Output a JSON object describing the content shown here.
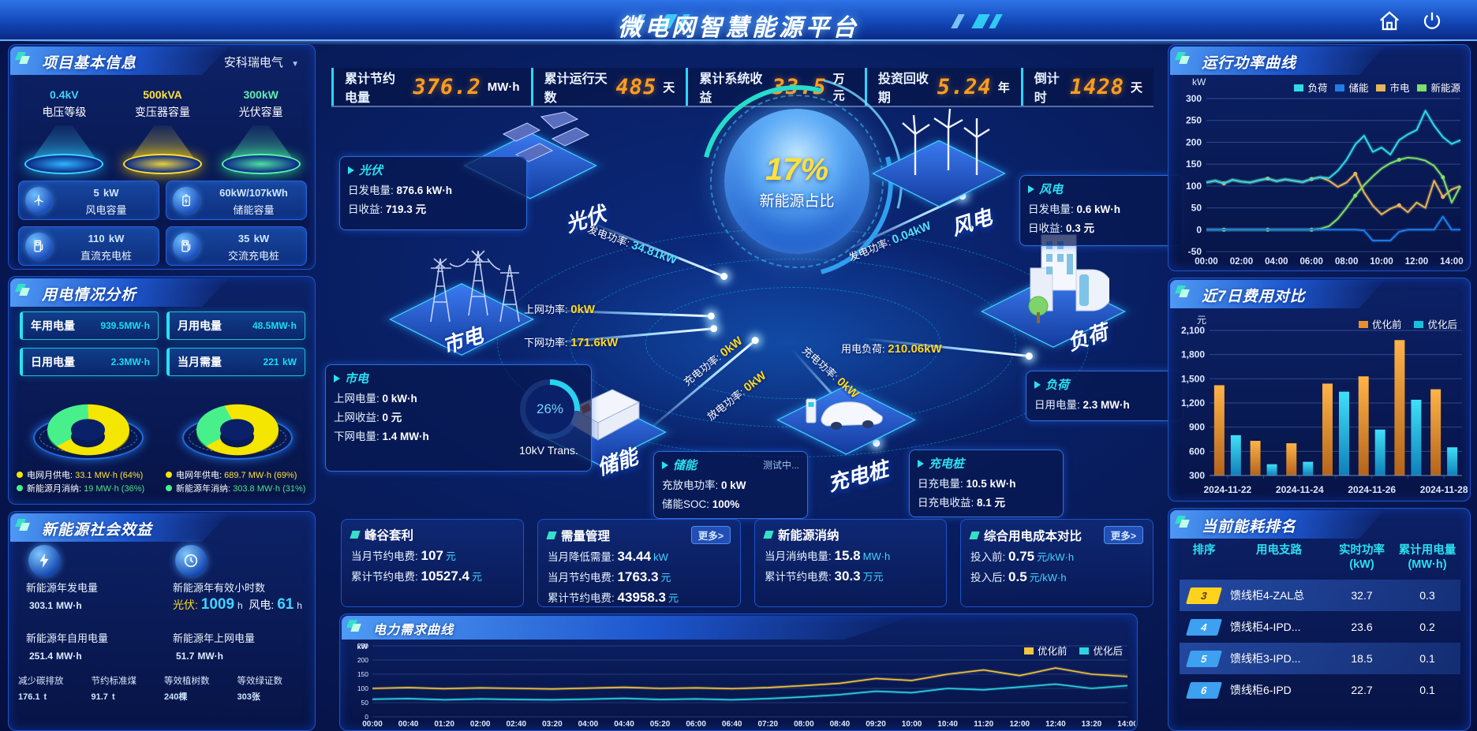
{
  "app": {
    "title": "微电网智慧能源平台"
  },
  "colors": {
    "accent_cyan": "#00d4ff",
    "accent_yellow": "#ffd81e",
    "accent_orange": "#ff9d20",
    "green": "#43e07e",
    "bg": "#0a1f63",
    "panel_border": "#1e53c8"
  },
  "top_stats": {
    "items": [
      {
        "label": "累计节约电量",
        "value": "376.2",
        "unit": "MW·h"
      },
      {
        "label": "累计运行天数",
        "value": "485",
        "unit": "天"
      },
      {
        "label": "累计系统收益",
        "value": "33.5",
        "unit": "万元"
      },
      {
        "label": "投资回收期",
        "value": "5.24",
        "unit": "年"
      },
      {
        "label": "倒计时",
        "value": "1428",
        "unit": "天"
      }
    ]
  },
  "left": {
    "project": {
      "title": "项目基本信息",
      "company": "安科瑞电气",
      "dropdown_arrow": "▼",
      "spotlights": [
        {
          "value": "0.4",
          "unit": "kV",
          "label": "电压等级",
          "color": "#3fd4ff"
        },
        {
          "value": "500",
          "unit": "kVA",
          "label": "变压器容量",
          "color": "#ffe13a"
        },
        {
          "value": "300",
          "unit": "kW",
          "label": "光伏容量",
          "color": "#5ff0b0"
        }
      ],
      "cards": [
        {
          "icon": "wind-turbine-icon",
          "value": "5",
          "unit": "kW",
          "label": "风电容量"
        },
        {
          "icon": "battery-icon",
          "value": "60kW/107kWh",
          "unit": "",
          "label": "储能容量"
        },
        {
          "icon": "dc-charger-icon",
          "value": "110",
          "unit": "kW",
          "label": "直流充电桩"
        },
        {
          "icon": "ac-charger-icon",
          "value": "35",
          "unit": "kW",
          "label": "交流充电桩"
        }
      ]
    },
    "usage": {
      "title": "用电情况分析",
      "stats": [
        {
          "label": "年用电量",
          "value": "939.5",
          "unit": "MW·h"
        },
        {
          "label": "月用电量",
          "value": "48.5",
          "unit": "MW·h"
        },
        {
          "label": "日用电量",
          "value": "2.3",
          "unit": "MW·h"
        },
        {
          "label": "当月需量",
          "value": "221",
          "unit": "kW"
        }
      ],
      "donuts": [
        {
          "legend": [
            {
              "label": "电网月供电:",
              "value": "33.1 MW·h (64%)",
              "pct": 64,
              "color": "#e3d400"
            },
            {
              "label": "新能源月消纳:",
              "value": "19 MW·h (36%)",
              "pct": 36,
              "color": "#35d97b"
            }
          ]
        },
        {
          "legend": [
            {
              "label": "电网年供电:",
              "value": "689.7 MW·h (69%)",
              "pct": 69,
              "color": "#e3d400"
            },
            {
              "label": "新能源年消纳:",
              "value": "303.8 MW·h (31%)",
              "pct": 31,
              "color": "#35d97b"
            }
          ]
        }
      ]
    },
    "benefit": {
      "title": "新能源社会效益",
      "gen": {
        "label": "新能源年发电量",
        "value": "303.1",
        "unit": "MW·h"
      },
      "hours": {
        "label": "新能源年有效小时数",
        "pv_label": "光伏:",
        "pv_value": "1009",
        "pv_unit": "h",
        "wind_label": "风电:",
        "wind_value": "61",
        "wind_unit": "h"
      },
      "self_use": {
        "label": "新能源年自用电量",
        "value": "251.4",
        "unit": "MW·h"
      },
      "to_grid": {
        "label": "新能源年上网电量",
        "value": "51.7",
        "unit": "MW·h"
      },
      "small": [
        {
          "label": "减少碳排放",
          "value": "176.1",
          "unit": "t"
        },
        {
          "label": "节约标准煤",
          "value": "91.7",
          "unit": "t"
        },
        {
          "label": "等效植树数",
          "value": "240",
          "unit": "棵"
        },
        {
          "label": "等效绿证数",
          "value": "303",
          "unit": "张"
        }
      ]
    }
  },
  "center": {
    "ratio": {
      "value": "17%",
      "label": "新能源占比"
    },
    "nodes": {
      "pv": "光伏",
      "wind": "风电",
      "grid": "市电",
      "storage": "储能",
      "charger": "充电桩",
      "load": "负荷"
    },
    "cards": {
      "pv": {
        "title": "光伏",
        "rows": [
          {
            "label": "日发电量:",
            "value": "876.6 kW·h"
          },
          {
            "label": "日收益:",
            "value": "719.3 元"
          }
        ]
      },
      "wind": {
        "title": "风电",
        "rows": [
          {
            "label": "日发电量:",
            "value": "0.6 kW·h"
          },
          {
            "label": "日收益:",
            "value": "0.3 元"
          }
        ]
      },
      "grid": {
        "title": "市电",
        "rows": [
          {
            "label": "上网电量:",
            "value": "0 kW·h"
          },
          {
            "label": "上网收益:",
            "value": "0 元"
          },
          {
            "label": "下网电量:",
            "value": "1.4 MW·h"
          }
        ],
        "gauge": {
          "value": "26%",
          "label": "10kV Trans."
        }
      },
      "storage": {
        "title": "储能",
        "badge": "测试中...",
        "rows": [
          {
            "label": "充放电功率:",
            "value": "0 kW"
          },
          {
            "label": "储能SOC:",
            "value": "100%"
          }
        ]
      },
      "charger": {
        "title": "充电桩",
        "rows": [
          {
            "label": "日充电量:",
            "value": "10.5 kW·h"
          },
          {
            "label": "日充电收益:",
            "value": "8.1 元"
          }
        ]
      },
      "load": {
        "title": "负荷",
        "rows": [
          {
            "label": "日用电量:",
            "value": "2.3 MW·h"
          }
        ]
      }
    },
    "flows": [
      {
        "label": "发电功率:",
        "value": "34.81kW",
        "tone": "cyan"
      },
      {
        "label": "上网功率:",
        "value": "0kW",
        "tone": "yellow"
      },
      {
        "label": "下网功率:",
        "value": "171.6kW",
        "tone": "yellow"
      },
      {
        "label": "发电功率:",
        "value": "0.04kW",
        "tone": "cyan"
      },
      {
        "label": "用电负荷:",
        "value": "210.06kW",
        "tone": "yellow"
      },
      {
        "label": "充电功率:",
        "value": "0kW",
        "tone": "yellow"
      },
      {
        "label": "放电功率:",
        "value": "0kW",
        "tone": "yellow"
      },
      {
        "label": "充电功率:",
        "value": "0kW",
        "tone": "yellow"
      }
    ],
    "summary": [
      {
        "title": "峰谷套利",
        "rows": [
          {
            "label": "当月节约电费:",
            "value": "107",
            "unit": "元"
          },
          {
            "label": "累计节约电费:",
            "value": "10527.4",
            "unit": "元"
          }
        ]
      },
      {
        "title": "需量管理",
        "more": "更多>",
        "rows": [
          {
            "label": "当月降低需量:",
            "value": "34.44",
            "unit": "kW"
          },
          {
            "label": "当月节约电费:",
            "value": "1763.3",
            "unit": "元"
          },
          {
            "label": "累计节约电费:",
            "value": "43958.3",
            "unit": "元"
          }
        ]
      },
      {
        "title": "新能源消纳",
        "rows": [
          {
            "label": "当月消纳电量:",
            "value": "15.8",
            "unit": "MW·h"
          },
          {
            "label": "累计节约电费:",
            "value": "30.3",
            "unit": "万元"
          }
        ]
      },
      {
        "title": "综合用电成本对比",
        "more": "更多>",
        "rows": [
          {
            "label": "投入前:",
            "value": "0.75",
            "unit": "元/kW·h"
          },
          {
            "label": "投入后:",
            "value": "0.5",
            "unit": "元/kW·h"
          }
        ]
      }
    ]
  },
  "right": {
    "power_curve": {
      "title": "运行功率曲线"
    },
    "cost_compare": {
      "title": "近7日费用对比"
    },
    "ranking": {
      "title": "当前能耗排名",
      "headers": {
        "col1": "排序",
        "col2": "用电支路",
        "col3a": "实时功率",
        "col3b": "(kW)",
        "col4a": "累计用电量",
        "col4b": "(MW·h)"
      },
      "rows": [
        {
          "rank": "3",
          "branch": "馈线柜4-ZAL总",
          "power": "32.7",
          "energy": "0.3"
        },
        {
          "rank": "4",
          "branch": "馈线柜4-IPD...",
          "power": "23.6",
          "energy": "0.2"
        },
        {
          "rank": "5",
          "branch": "馈线柜3-IPD...",
          "power": "18.5",
          "energy": "0.1"
        },
        {
          "rank": "6",
          "branch": "馈线柜6-IPD",
          "power": "22.7",
          "energy": "0.1"
        }
      ]
    }
  },
  "bottom_chart": {
    "title": "电力需求曲线"
  },
  "chart_data": [
    {
      "type": "line",
      "title": "运行功率曲线",
      "ylabel": "kW",
      "ylim": [
        -50,
        300
      ],
      "yticks": [
        -50,
        0,
        50,
        100,
        150,
        200,
        250,
        300
      ],
      "xticks_hours": [
        0,
        2,
        4,
        6,
        8,
        10,
        12,
        14
      ],
      "x_range_hours": [
        0,
        14.5
      ],
      "xtick_labels": [
        "00:00",
        "02:00",
        "04:00",
        "06:00",
        "08:00",
        "10:00",
        "12:00",
        "14:00"
      ],
      "legend_position": "top",
      "grid": true,
      "series": [
        {
          "name": "负荷",
          "color": "#2fd9e7",
          "values": [
            108,
            112,
            106,
            114,
            110,
            108,
            113,
            117,
            111,
            115,
            112,
            109,
            116,
            120,
            118,
            135,
            160,
            195,
            215,
            178,
            188,
            172,
            205,
            218,
            228,
            272,
            238,
            212,
            196,
            205
          ]
        },
        {
          "name": "储能",
          "color": "#1f7ce8",
          "values": [
            0,
            0,
            0,
            0,
            0,
            0,
            0,
            0,
            0,
            0,
            0,
            0,
            0,
            0,
            0,
            0,
            0,
            0,
            -2,
            -25,
            -25,
            -25,
            -5,
            0,
            0,
            0,
            0,
            30,
            0,
            0
          ]
        },
        {
          "name": "市电",
          "color": "#e8b457",
          "values": [
            108,
            112,
            106,
            114,
            110,
            108,
            113,
            117,
            111,
            115,
            112,
            109,
            116,
            120,
            112,
            98,
            108,
            128,
            85,
            55,
            35,
            48,
            56,
            40,
            62,
            50,
            112,
            75,
            92,
            100
          ]
        },
        {
          "name": "新能源",
          "color": "#7ede6a",
          "values": [
            0,
            0,
            0,
            0,
            0,
            0,
            0,
            0,
            0,
            0,
            0,
            0,
            0,
            2,
            8,
            25,
            50,
            78,
            102,
            122,
            140,
            152,
            160,
            165,
            163,
            158,
            146,
            120,
            62,
            100
          ]
        }
      ]
    },
    {
      "type": "bar",
      "title": "近7日费用对比",
      "ylabel": "元",
      "ylim": [
        300,
        2100
      ],
      "yticks": [
        300,
        600,
        900,
        1200,
        1500,
        1800,
        2100
      ],
      "categories": [
        "2024-11-22",
        "2024-11-23",
        "2024-11-24",
        "2024-11-25",
        "2024-11-26",
        "2024-11-27",
        "2024-11-28"
      ],
      "xtick_labels_shown": [
        "2024-11-22",
        "2024-11-24",
        "2024-11-26",
        "2024-11-28"
      ],
      "legend_position": "top-right",
      "grid": true,
      "series": [
        {
          "name": "优化前",
          "color": "#e88f2a",
          "values": [
            1420,
            730,
            700,
            1440,
            1530,
            1980,
            1370
          ]
        },
        {
          "name": "优化后",
          "color": "#18c0dd",
          "values": [
            800,
            440,
            470,
            1340,
            870,
            1240,
            650
          ]
        }
      ]
    },
    {
      "type": "line",
      "title": "电力需求曲线",
      "ylabel": "kW",
      "ylim": [
        0,
        250
      ],
      "yticks": [
        0,
        50,
        100,
        150,
        200,
        250
      ],
      "categories": [
        "00:00",
        "00:40",
        "01:20",
        "02:00",
        "02:40",
        "03:20",
        "04:00",
        "04:40",
        "05:20",
        "06:00",
        "06:40",
        "07:20",
        "08:00",
        "08:40",
        "09:20",
        "10:00",
        "10:40",
        "11:20",
        "12:00",
        "12:40",
        "13:20",
        "14:00"
      ],
      "legend_position": "top-right",
      "grid": true,
      "series": [
        {
          "name": "优化前",
          "color": "#f0c53f",
          "values": [
            100,
            103,
            99,
            102,
            100,
            98,
            101,
            104,
            100,
            102,
            99,
            103,
            110,
            118,
            135,
            128,
            150,
            165,
            145,
            172,
            150,
            142
          ]
        },
        {
          "name": "优化后",
          "color": "#2ad4e0",
          "values": [
            62,
            64,
            60,
            63,
            61,
            60,
            62,
            65,
            61,
            63,
            60,
            64,
            70,
            78,
            90,
            85,
            100,
            95,
            105,
            115,
            100,
            110
          ]
        }
      ]
    }
  ]
}
